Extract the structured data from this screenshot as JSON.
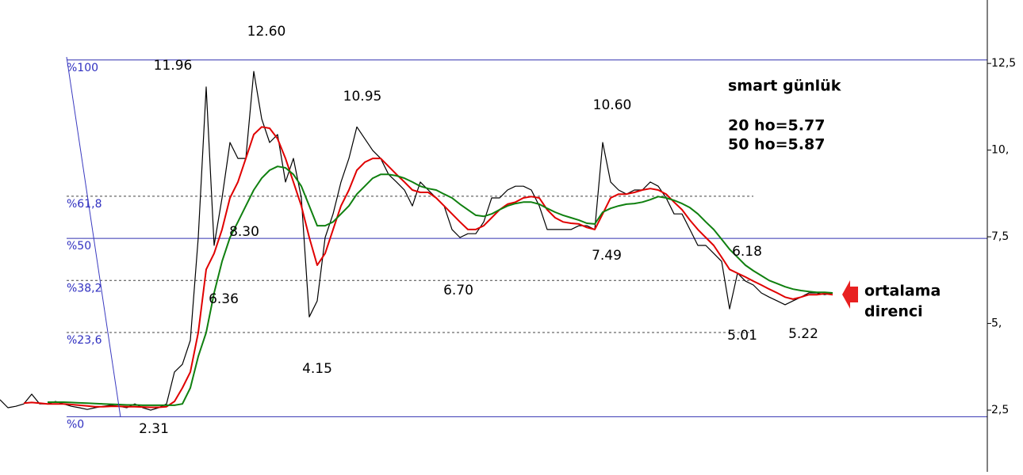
{
  "chart_data": {
    "type": "line",
    "ylim": [
      0.72,
      14.33
    ],
    "yticks": [
      {
        "value": 12.5,
        "label": "12,5"
      },
      {
        "value": 10,
        "label": "10,"
      },
      {
        "value": 7.5,
        "label": "7,5"
      },
      {
        "value": 5,
        "label": "5,"
      },
      {
        "value": 2.5,
        "label": "2,5"
      }
    ],
    "series": [
      {
        "color": "#000000",
        "values": [
          2.8,
          2.57,
          2.61,
          2.68,
          2.96,
          2.68,
          2.68,
          2.75,
          2.68,
          2.61,
          2.57,
          2.52,
          2.57,
          2.61,
          2.64,
          2.61,
          2.57,
          2.68,
          2.57,
          2.5,
          2.57,
          2.68,
          3.6,
          3.82,
          4.51,
          7.48,
          11.82,
          7.25,
          8.62,
          10.22,
          9.76,
          9.76,
          12.27,
          10.9,
          10.22,
          10.45,
          9.08,
          9.76,
          8.62,
          5.19,
          5.65,
          7.48,
          8.16,
          9.08,
          9.76,
          10.67,
          10.33,
          9.99,
          9.76,
          9.3,
          9.08,
          8.85,
          8.39,
          9.08,
          8.85,
          8.62,
          8.39,
          7.71,
          7.48,
          7.59,
          7.59,
          7.93,
          8.62,
          8.62,
          8.85,
          8.96,
          8.96,
          8.85,
          8.39,
          7.71,
          7.71,
          7.71,
          7.71,
          7.82,
          7.82,
          7.71,
          10.22,
          9.08,
          8.85,
          8.73,
          8.85,
          8.85,
          9.08,
          8.96,
          8.62,
          8.16,
          8.16,
          7.71,
          7.25,
          7.25,
          7.02,
          6.79,
          5.42,
          6.45,
          6.22,
          6.11,
          5.88,
          5.76,
          5.65,
          5.54,
          5.65,
          5.76,
          5.88,
          5.88,
          5.83,
          5.88
        ]
      },
      {
        "color": "#e00000",
        "values": [
          null,
          null,
          null,
          2.7,
          2.72,
          2.7,
          2.68,
          2.68,
          2.68,
          2.66,
          2.64,
          2.62,
          2.6,
          2.6,
          2.61,
          2.61,
          2.6,
          2.6,
          2.59,
          2.58,
          2.58,
          2.6,
          2.75,
          3.14,
          3.6,
          4.74,
          6.56,
          7.02,
          7.71,
          8.62,
          9.08,
          9.76,
          10.45,
          10.67,
          10.63,
          10.33,
          9.76,
          9.08,
          8.39,
          7.48,
          6.68,
          7.02,
          7.71,
          8.39,
          8.85,
          9.42,
          9.65,
          9.76,
          9.76,
          9.53,
          9.3,
          9.08,
          8.85,
          8.78,
          8.78,
          8.62,
          8.39,
          8.16,
          7.93,
          7.71,
          7.71,
          7.82,
          8.05,
          8.28,
          8.44,
          8.5,
          8.62,
          8.66,
          8.62,
          8.28,
          8.05,
          7.93,
          7.89,
          7.87,
          7.77,
          7.71,
          8.16,
          8.62,
          8.73,
          8.73,
          8.78,
          8.85,
          8.89,
          8.85,
          8.73,
          8.5,
          8.28,
          7.98,
          7.71,
          7.48,
          7.25,
          6.91,
          6.56,
          6.45,
          6.34,
          6.22,
          6.11,
          5.99,
          5.88,
          5.76,
          5.7,
          5.76,
          5.83,
          5.83,
          5.86,
          5.83
        ]
      },
      {
        "color": "#108010",
        "values": [
          null,
          null,
          null,
          null,
          null,
          null,
          2.73,
          2.73,
          2.73,
          2.72,
          2.71,
          2.7,
          2.69,
          2.68,
          2.67,
          2.66,
          2.65,
          2.65,
          2.64,
          2.64,
          2.64,
          2.64,
          2.64,
          2.68,
          3.14,
          4.05,
          4.74,
          5.88,
          6.79,
          7.48,
          7.93,
          8.39,
          8.85,
          9.19,
          9.42,
          9.53,
          9.49,
          9.3,
          8.96,
          8.39,
          7.82,
          7.82,
          7.93,
          8.16,
          8.39,
          8.73,
          8.96,
          9.19,
          9.3,
          9.3,
          9.26,
          9.19,
          9.08,
          8.96,
          8.89,
          8.85,
          8.73,
          8.62,
          8.44,
          8.28,
          8.12,
          8.09,
          8.16,
          8.28,
          8.39,
          8.46,
          8.5,
          8.5,
          8.44,
          8.32,
          8.21,
          8.12,
          8.05,
          7.98,
          7.89,
          7.87,
          8.21,
          8.32,
          8.39,
          8.44,
          8.46,
          8.5,
          8.57,
          8.66,
          8.62,
          8.55,
          8.46,
          8.34,
          8.16,
          7.93,
          7.71,
          7.43,
          7.14,
          6.91,
          6.68,
          6.52,
          6.38,
          6.24,
          6.15,
          6.06,
          5.99,
          5.95,
          5.92,
          5.9,
          5.9,
          5.88
        ]
      }
    ],
    "fib_levels": [
      {
        "label": "%100",
        "value": 12.6,
        "style": "solid"
      },
      {
        "label": "%61,8",
        "value": 8.67,
        "style": "dashed"
      },
      {
        "label": "%50",
        "value": 7.455,
        "style": "solid"
      },
      {
        "label": "%38,2",
        "value": 6.24,
        "style": "dashed"
      },
      {
        "label": "%23,6",
        "value": 4.74,
        "style": "dashed"
      },
      {
        "label": "%0",
        "value": 2.31,
        "style": "solid"
      }
    ],
    "annotations": [
      "12.60",
      "11.96",
      "10.95",
      "10.60",
      "8.30",
      "6.36",
      "4.15",
      "6.70",
      "7.49",
      "6.18",
      "5.01",
      "5.22",
      "2.31"
    ],
    "note_title": "smart günlük",
    "notes": [
      "20 ho=5.77",
      "50 ho=5.87"
    ],
    "callout": [
      "ortalama",
      "direnci"
    ]
  }
}
